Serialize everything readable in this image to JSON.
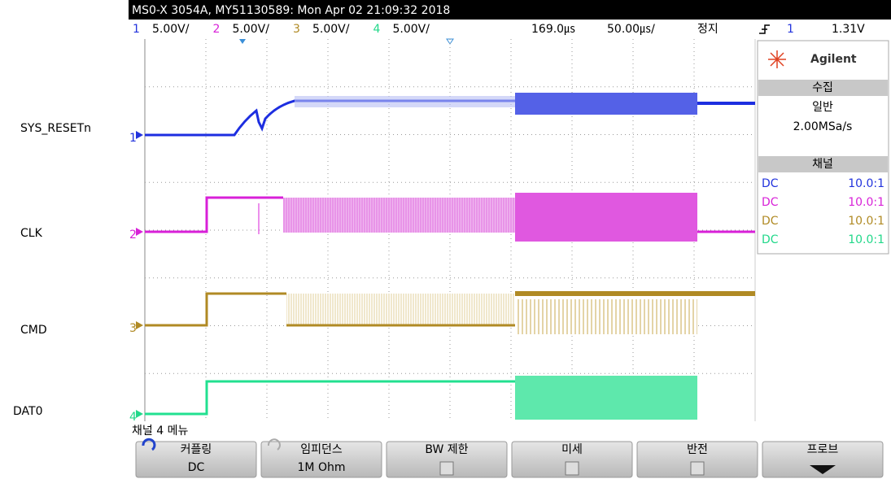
{
  "signal_labels": [
    "SYS_RESETn",
    "CLK",
    "CMD",
    "DAT0"
  ],
  "header": {
    "title": "MS0-X 3054A, MY51130589: Mon Apr 02 21:09:32 2018"
  },
  "status_bar": {
    "channels": [
      {
        "number": "1",
        "scale": "5.00V/",
        "color": "#2233dd"
      },
      {
        "number": "2",
        "scale": "5.00V/",
        "color": "#d822d8"
      },
      {
        "number": "3",
        "scale": "5.00V/",
        "color": "#b08a24"
      },
      {
        "number": "4",
        "scale": "5.00V/",
        "color": "#22d88a"
      }
    ],
    "delay": "169.0㎲",
    "timebase": "50.00㎲/",
    "run_state": "정지",
    "trigger": {
      "source": "1",
      "level": "1.31V"
    }
  },
  "side_panel": {
    "brand": "Agilent",
    "acquisition": {
      "title": "수집",
      "mode": "일반",
      "rate": "2.00MSa/s"
    },
    "channels": {
      "title": "채널",
      "rows": [
        {
          "coupling": "DC",
          "probe": "10.0:1"
        },
        {
          "coupling": "DC",
          "probe": "10.0:1"
        },
        {
          "coupling": "DC",
          "probe": "10.0:1"
        },
        {
          "coupling": "DC",
          "probe": "10.0:1"
        }
      ]
    }
  },
  "menu": {
    "title": "채널 4 메뉴",
    "softkeys": [
      {
        "label": "커플링",
        "value": "DC"
      },
      {
        "label": "임피던스",
        "value": "1M Ohm"
      },
      {
        "label": "BW 제한"
      },
      {
        "label": "미세"
      },
      {
        "label": "반전"
      },
      {
        "label": "프로브"
      }
    ]
  }
}
